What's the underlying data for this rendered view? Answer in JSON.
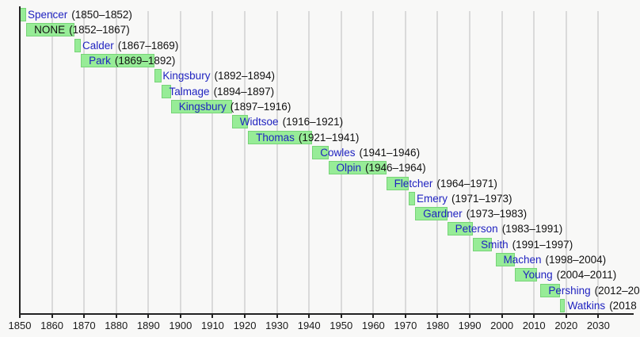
{
  "chart_data": {
    "type": "bar",
    "subtype": "gantt-timeline",
    "title": "",
    "xlabel": "",
    "ylabel": "",
    "axis": {
      "min_year": 1850,
      "max_year": 2041,
      "tick_years": [
        1850,
        1860,
        1870,
        1880,
        1890,
        1900,
        1910,
        1920,
        1930,
        1940,
        1950,
        1960,
        1970,
        1980,
        1990,
        2000,
        2010,
        2020,
        2030
      ],
      "grid": true
    },
    "colors": {
      "bar_fill": "#97ec97",
      "bar_edge": "#6fcf6f",
      "link_text": "#2023c0",
      "plain_text": "#111111",
      "axis": "#222222",
      "gridline": "#dadada",
      "background": "#f8f8f7"
    },
    "rows": [
      {
        "name": "Spencer",
        "dates": "(1850–1852)",
        "start": 1850,
        "end": 1852,
        "link": true
      },
      {
        "name": "NONE",
        "dates": "(1852–1867)",
        "start": 1852,
        "end": 1867,
        "link": false
      },
      {
        "name": "Calder",
        "dates": "(1867–1869)",
        "start": 1867,
        "end": 1869,
        "link": true
      },
      {
        "name": "Park",
        "dates": "(1869–1892)",
        "start": 1869,
        "end": 1892,
        "link": true
      },
      {
        "name": "Kingsbury",
        "dates": "(1892–1894)",
        "start": 1892,
        "end": 1894,
        "link": true
      },
      {
        "name": "Talmage",
        "dates": "(1894–1897)",
        "start": 1894,
        "end": 1897,
        "link": true
      },
      {
        "name": "Kingsbury",
        "dates": "(1897–1916)",
        "start": 1897,
        "end": 1916,
        "link": true
      },
      {
        "name": "Widtsoe",
        "dates": "(1916–1921)",
        "start": 1916,
        "end": 1921,
        "link": true
      },
      {
        "name": "Thomas",
        "dates": "(1921–1941)",
        "start": 1921,
        "end": 1941,
        "link": true
      },
      {
        "name": "Cowles",
        "dates": "(1941–1946)",
        "start": 1941,
        "end": 1946,
        "link": true
      },
      {
        "name": "Olpin",
        "dates": "(1946–1964)",
        "start": 1946,
        "end": 1964,
        "link": true
      },
      {
        "name": "Fletcher",
        "dates": "(1964–1971)",
        "start": 1964,
        "end": 1971,
        "link": true
      },
      {
        "name": "Emery",
        "dates": "(1971–1973)",
        "start": 1971,
        "end": 1973,
        "link": true
      },
      {
        "name": "Gardner",
        "dates": "(1973–1983)",
        "start": 1973,
        "end": 1983,
        "link": true
      },
      {
        "name": "Peterson",
        "dates": "(1983–1991)",
        "start": 1983,
        "end": 1991,
        "link": true
      },
      {
        "name": "Smith",
        "dates": "(1991–1997)",
        "start": 1991,
        "end": 1997,
        "link": true
      },
      {
        "name": "Machen",
        "dates": "(1998–2004)",
        "start": 1998,
        "end": 2004,
        "link": true
      },
      {
        "name": "Young",
        "dates": "(2004–2011)",
        "start": 2004,
        "end": 2011,
        "link": true
      },
      {
        "name": "Pershing",
        "dates": "(2012–20",
        "start": 2012,
        "end": 2018,
        "link": true
      },
      {
        "name": "Watkins",
        "dates": "(2018",
        "start": 2018,
        "end": 2019.5,
        "link": true
      }
    ]
  }
}
